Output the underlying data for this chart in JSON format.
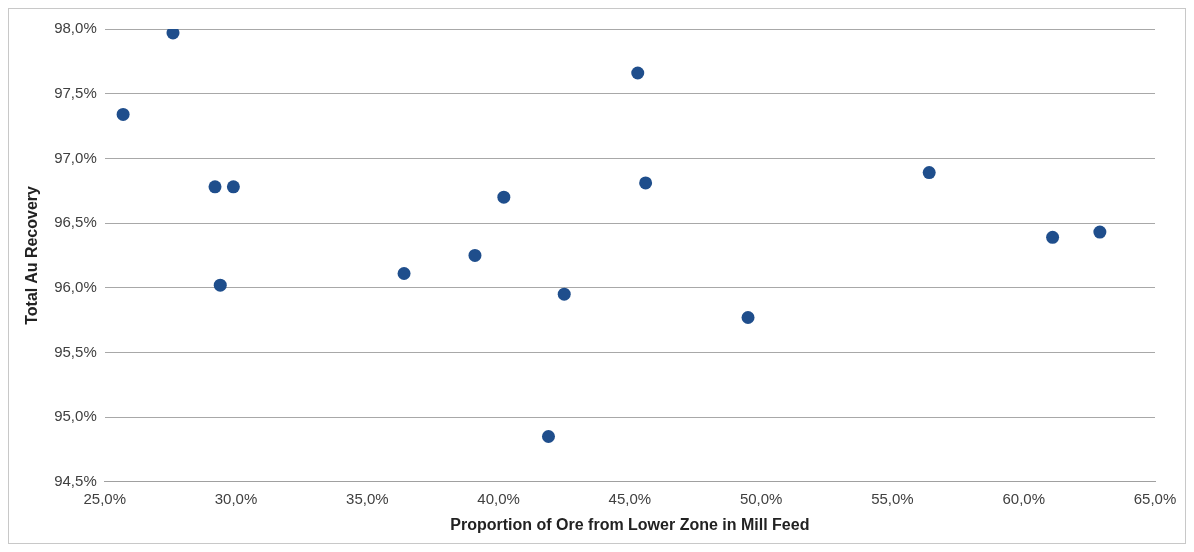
{
  "chart_data": {
    "type": "scatter",
    "xlabel": "Proportion of Ore from Lower Zone in Mill Feed",
    "ylabel": "Total Au Recovery",
    "x": [
      25.7,
      27.6,
      29.2,
      29.9,
      29.4,
      36.4,
      39.1,
      40.2,
      41.9,
      42.5,
      45.3,
      45.6,
      49.5,
      56.4,
      61.1,
      62.9
    ],
    "series": [
      {
        "color": "#1f4e8c",
        "values": [
          97.34,
          97.97,
          96.78,
          96.78,
          96.02,
          96.11,
          96.25,
          96.7,
          94.85,
          95.95,
          97.66,
          96.81,
          95.77,
          96.89,
          96.39,
          96.43
        ]
      }
    ],
    "xlim": [
      25,
      65
    ],
    "ylim": [
      94.5,
      98
    ],
    "xticks": [
      {
        "value": 25,
        "label": "25,0%"
      },
      {
        "value": 30,
        "label": "30,0%"
      },
      {
        "value": 35,
        "label": "35,0%"
      },
      {
        "value": 40,
        "label": "40,0%"
      },
      {
        "value": 45,
        "label": "45,0%"
      },
      {
        "value": 50,
        "label": "50,0%"
      },
      {
        "value": 55,
        "label": "55,0%"
      },
      {
        "value": 60,
        "label": "60,0%"
      },
      {
        "value": 65,
        "label": "65,0%"
      }
    ],
    "yticks": [
      {
        "value": 94.5,
        "label": "94,5%"
      },
      {
        "value": 95,
        "label": "95,0%"
      },
      {
        "value": 95.5,
        "label": "95,5%"
      },
      {
        "value": 96,
        "label": "96,0%"
      },
      {
        "value": 96.5,
        "label": "96,5%"
      },
      {
        "value": 97,
        "label": "97,0%"
      },
      {
        "value": 97.5,
        "label": "97,5%"
      },
      {
        "value": 98,
        "label": "98,0%"
      }
    ],
    "grid": "y",
    "marker": "circle",
    "legend": false
  }
}
